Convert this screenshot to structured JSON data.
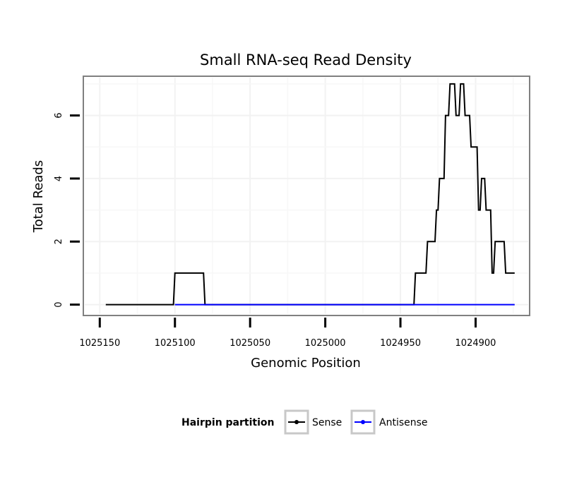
{
  "chart_data": {
    "type": "line",
    "title": "Small RNA-seq Read Density",
    "xlabel": "Genomic Position",
    "ylabel": "Total Reads",
    "xlim": [
      1025160,
      1024865
    ],
    "ylim": [
      -0.3,
      7.2
    ],
    "x_ticks": [
      1025150,
      1025100,
      1025050,
      1025000,
      1024950,
      1024900
    ],
    "x_tick_labels": [
      "1025150",
      "1025100",
      "1025050",
      "1025000",
      "1024950",
      "1024900"
    ],
    "y_ticks": [
      0,
      2,
      4,
      6
    ],
    "y_tick_labels": [
      "0",
      "2",
      "4",
      "6"
    ],
    "grid": true,
    "legend_position": "bottom",
    "legend_title": "Hairpin partition",
    "series": [
      {
        "name": "Sense",
        "color": "#000000",
        "x": [
          1025146,
          1025101,
          1025100,
          1025081,
          1025080,
          1024941,
          1024940,
          1024933,
          1024932,
          1024927,
          1024926,
          1024925,
          1024924,
          1024921,
          1024920,
          1024918,
          1024917,
          1024914,
          1024913,
          1024911,
          1024910,
          1024908,
          1024907,
          1024904,
          1024903,
          1024899,
          1024898,
          1024897,
          1024896,
          1024894,
          1024893,
          1024890,
          1024889,
          1024888,
          1024887,
          1024886,
          1024885,
          1024881,
          1024880,
          1024875,
          1024874
        ],
        "y": [
          0,
          0,
          1,
          1,
          0,
          0,
          1,
          1,
          2,
          2,
          3,
          3,
          4,
          4,
          6,
          6,
          7,
          7,
          6,
          6,
          7,
          7,
          6,
          6,
          5,
          5,
          3,
          3,
          4,
          4,
          3,
          3,
          1,
          1,
          2,
          2,
          2,
          2,
          1,
          1,
          1
        ]
      },
      {
        "name": "Antisense",
        "color": "#0000ff",
        "x": [
          1025100,
          1025080,
          1024940,
          1024874
        ],
        "y": [
          0,
          0,
          0,
          0
        ]
      }
    ]
  }
}
